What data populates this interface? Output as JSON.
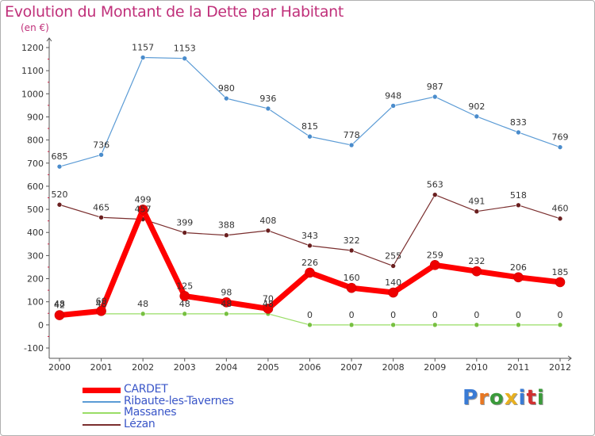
{
  "header": {
    "title": "Evolution du Montant de la Dette par Habitant",
    "unit": "(en €)"
  },
  "logo": {
    "text": "Proxiti",
    "colors": [
      "#3a7bd5",
      "#e87722",
      "#3a9a3a",
      "#e8b020",
      "#3a7bd5",
      "#d03030",
      "#3a9a3a"
    ]
  },
  "chart_data": {
    "type": "line",
    "title": "Evolution du Montant de la Dette par Habitant",
    "ylabel": "(en €)",
    "xlabel": "",
    "x": [
      "2000",
      "2001",
      "2002",
      "2003",
      "2004",
      "2005",
      "2006",
      "2007",
      "2008",
      "2009",
      "2010",
      "2011",
      "2012"
    ],
    "ylim": [
      -100,
      1200
    ],
    "yticks": [
      "-100",
      "0",
      "100",
      "200",
      "300",
      "400",
      "500",
      "600",
      "700",
      "800",
      "900",
      "1000",
      "1100",
      "1200"
    ],
    "grid": false,
    "legend_position": "bottom-left",
    "series": [
      {
        "name": "Ribaute-les-Tavernes",
        "color": "#5b9bd5",
        "point_color": "#4a8ccc",
        "values": [
          685,
          736,
          1157,
          1153,
          980,
          936,
          815,
          778,
          948,
          987,
          902,
          833,
          769
        ],
        "labels": [
          "685",
          "736",
          "1157",
          "1153",
          "980",
          "936",
          "815",
          "778",
          "948",
          "987",
          "902",
          "833",
          "769"
        ]
      },
      {
        "name": "Lézan",
        "color": "#7a2e2e",
        "point_color": "#6a1f1f",
        "values": [
          520,
          465,
          457,
          399,
          388,
          408,
          343,
          322,
          255,
          563,
          491,
          518,
          460
        ],
        "labels": [
          "520",
          "465",
          "457",
          "399",
          "388",
          "408",
          "343",
          "322",
          "255",
          "563",
          "491",
          "518",
          "460"
        ]
      },
      {
        "name": "Massanes",
        "color": "#99dd66",
        "point_color": "#77c040",
        "values": [
          48,
          48,
          48,
          48,
          48,
          48,
          0,
          0,
          0,
          0,
          0,
          0,
          0
        ],
        "labels": [
          "48",
          "48",
          "48",
          "48",
          "48",
          "48",
          "0",
          "0",
          "0",
          "0",
          "0",
          "0",
          "0"
        ]
      },
      {
        "name": "CARDET",
        "color": "#ff0000",
        "point_color": "#ee0000",
        "values": [
          42,
          60,
          499,
          125,
          98,
          70,
          226,
          160,
          140,
          259,
          232,
          206,
          185
        ],
        "labels": [
          "42",
          "60",
          "499",
          "125",
          "98",
          "70",
          "226",
          "160",
          "140",
          "259",
          "232",
          "206",
          "185"
        ]
      }
    ],
    "legend_order": [
      "CARDET",
      "Ribaute-les-Tavernes",
      "Massanes",
      "Lézan"
    ]
  }
}
